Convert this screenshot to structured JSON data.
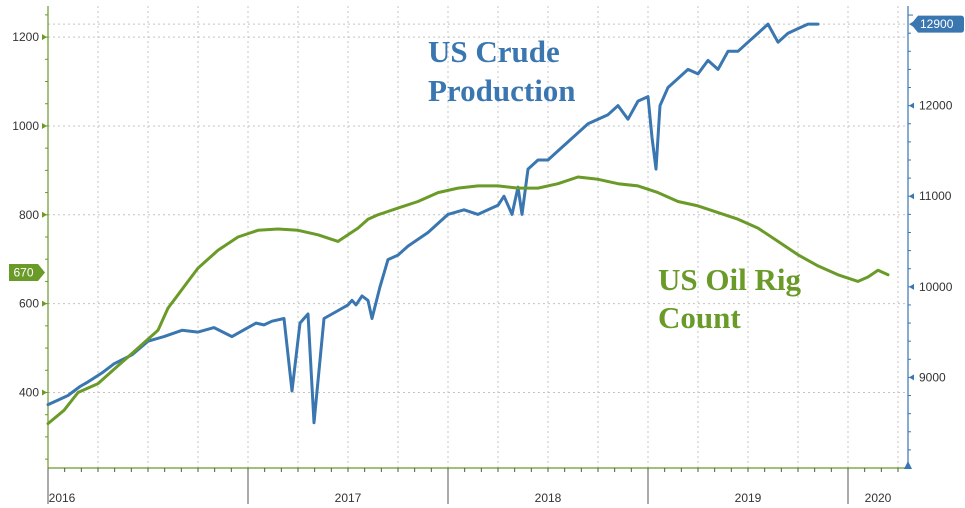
{
  "chart_data": {
    "type": "line",
    "x_axis": {
      "labels": [
        "2016",
        "2017",
        "2018",
        "2019",
        "2020"
      ],
      "range": [
        "2016-01",
        "2020-03"
      ]
    },
    "y_left": {
      "ticks": [
        400,
        600,
        800,
        1000,
        1200
      ],
      "range": [
        230,
        1270
      ]
    },
    "y_right": {
      "ticks": [
        9000,
        10000,
        11000,
        12000,
        12900
      ],
      "range": [
        8000,
        13100
      ]
    },
    "grid": true,
    "series": [
      {
        "name": "US Crude Production",
        "axis": "right",
        "color": "#3a76b0",
        "current_label": "12900",
        "x": [
          2016.0,
          2016.05,
          2016.1,
          2016.16,
          2016.2,
          2016.27,
          2016.33,
          2016.42,
          2016.5,
          2016.58,
          2016.67,
          2016.75,
          2016.83,
          2016.92,
          2017.0,
          2017.04,
          2017.08,
          2017.12,
          2017.18,
          2017.22,
          2017.26,
          2017.28,
          2017.3,
          2017.33,
          2017.38,
          2017.46,
          2017.5,
          2017.52,
          2017.54,
          2017.57,
          2017.6,
          2017.62,
          2017.66,
          2017.7,
          2017.75,
          2017.8,
          2017.9,
          2018.0,
          2018.08,
          2018.15,
          2018.2,
          2018.25,
          2018.28,
          2018.32,
          2018.35,
          2018.37,
          2018.4,
          2018.45,
          2018.5,
          2018.55,
          2018.6,
          2018.65,
          2018.7,
          2018.75,
          2018.8,
          2018.85,
          2018.9,
          2018.95,
          2019.0,
          2019.02,
          2019.04,
          2019.06,
          2019.1,
          2019.15,
          2019.2,
          2019.25,
          2019.3,
          2019.35,
          2019.4,
          2019.45,
          2019.5,
          2019.55,
          2019.6,
          2019.65,
          2019.7,
          2019.75,
          2019.8,
          2019.85
        ],
        "y": [
          8700,
          8750,
          8800,
          8900,
          8950,
          9050,
          9150,
          9250,
          9400,
          9450,
          9520,
          9500,
          9550,
          9450,
          9550,
          9600,
          9580,
          9620,
          9650,
          8850,
          9600,
          9650,
          9700,
          8500,
          9650,
          9750,
          9800,
          9850,
          9800,
          9900,
          9850,
          9650,
          10000,
          10300,
          10350,
          10450,
          10600,
          10800,
          10850,
          10800,
          10850,
          10900,
          11000,
          10800,
          11100,
          10800,
          11300,
          11400,
          11400,
          11500,
          11600,
          11700,
          11800,
          11850,
          11900,
          12000,
          11850,
          12050,
          12100,
          11650,
          11300,
          12000,
          12200,
          12300,
          12400,
          12350,
          12500,
          12400,
          12600,
          12600,
          12700,
          12800,
          12900,
          12700,
          12800,
          12850,
          12900,
          12900
        ]
      },
      {
        "name": "US Oil Rig Count",
        "axis": "left",
        "color": "#6a9a28",
        "current_label": "670",
        "x": [
          2016.0,
          2016.08,
          2016.15,
          2016.25,
          2016.35,
          2016.45,
          2016.55,
          2016.6,
          2016.65,
          2016.7,
          2016.75,
          2016.85,
          2016.95,
          2017.05,
          2017.15,
          2017.25,
          2017.35,
          2017.45,
          2017.55,
          2017.6,
          2017.65,
          2017.75,
          2017.85,
          2017.95,
          2018.05,
          2018.15,
          2018.25,
          2018.35,
          2018.45,
          2018.55,
          2018.65,
          2018.75,
          2018.85,
          2018.95,
          2019.05,
          2019.15,
          2019.25,
          2019.35,
          2019.45,
          2019.55,
          2019.65,
          2019.75,
          2019.85,
          2019.95,
          2020.05,
          2020.1,
          2020.15,
          2020.2
        ],
        "y": [
          330,
          360,
          400,
          420,
          460,
          500,
          540,
          590,
          620,
          650,
          680,
          720,
          750,
          765,
          768,
          765,
          755,
          740,
          770,
          790,
          800,
          815,
          830,
          850,
          860,
          865,
          865,
          860,
          860,
          870,
          885,
          880,
          870,
          865,
          850,
          830,
          820,
          805,
          790,
          770,
          740,
          710,
          685,
          665,
          650,
          660,
          675,
          665
        ]
      }
    ],
    "annotations": [
      {
        "text": "US Crude",
        "series": "US Crude Production"
      },
      {
        "text": "Production",
        "series": "US Crude Production"
      },
      {
        "text": "US Oil Rig",
        "series": "US Oil Rig Count"
      },
      {
        "text": "Count",
        "series": "US Oil Rig Count"
      }
    ]
  }
}
